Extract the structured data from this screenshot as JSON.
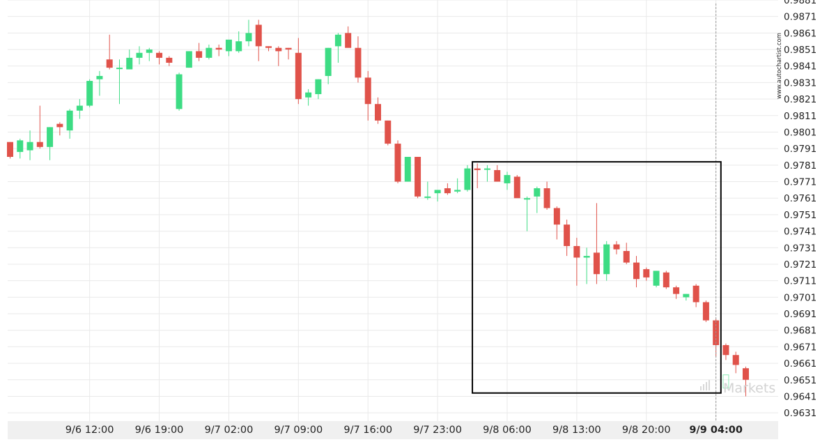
{
  "watermark": {
    "site": "www.autochartist.com",
    "brand": "Markets"
  },
  "colors": {
    "up": "#3ddc84",
    "down": "#e0524a",
    "grid": "#e9e9e9",
    "axis_band": "#f0f0f0",
    "text": "#222222",
    "box": "#000000",
    "cursor": "#999999"
  },
  "chart_data": {
    "type": "candlestick",
    "title": "",
    "xlabel": "",
    "ylabel": "",
    "ylim": [
      0.9626,
      0.9881
    ],
    "y_ticks": [
      "0.9881",
      "0.9871",
      "0.9861",
      "0.9851",
      "0.9841",
      "0.9831",
      "0.9821",
      "0.9811",
      "0.9801",
      "0.9791",
      "0.9781",
      "0.9771",
      "0.9761",
      "0.9751",
      "0.9741",
      "0.9731",
      "0.9721",
      "0.9711",
      "0.9701",
      "0.9691",
      "0.9681",
      "0.9671",
      "0.9661",
      "0.9651",
      "0.9641",
      "0.9631"
    ],
    "x_ticks": [
      {
        "label": "9/6 12:00",
        "bar": 8,
        "bold": false
      },
      {
        "label": "9/6 19:00",
        "bar": 15,
        "bold": false
      },
      {
        "label": "9/7 02:00",
        "bar": 22,
        "bold": false
      },
      {
        "label": "9/7 09:00",
        "bar": 29,
        "bold": false
      },
      {
        "label": "9/7 16:00",
        "bar": 36,
        "bold": false
      },
      {
        "label": "9/7 23:00",
        "bar": 43,
        "bold": false
      },
      {
        "label": "9/8 06:00",
        "bar": 50,
        "bold": false
      },
      {
        "label": "9/8 13:00",
        "bar": 57,
        "bold": false
      },
      {
        "label": "9/8 20:00",
        "bar": 64,
        "bold": false
      },
      {
        "label": "9/9 04:00",
        "bar": 71,
        "bold": true
      }
    ],
    "pattern_box": {
      "start_bar": 46.5,
      "end_bar": 71.5,
      "top": 0.9783,
      "bottom": 0.9643
    },
    "current_bar": 71,
    "candles": [
      {
        "o": 0.9795,
        "h": 0.9795,
        "l": 0.9785,
        "c": 0.9786
      },
      {
        "o": 0.9789,
        "h": 0.9797,
        "l": 0.9785,
        "c": 0.9796
      },
      {
        "o": 0.979,
        "h": 0.9802,
        "l": 0.9784,
        "c": 0.9795
      },
      {
        "o": 0.9795,
        "h": 0.9817,
        "l": 0.9791,
        "c": 0.9792
      },
      {
        "o": 0.9792,
        "h": 0.9804,
        "l": 0.9784,
        "c": 0.9804
      },
      {
        "o": 0.9806,
        "h": 0.9807,
        "l": 0.9799,
        "c": 0.9804
      },
      {
        "o": 0.9802,
        "h": 0.9815,
        "l": 0.9797,
        "c": 0.9814
      },
      {
        "o": 0.9814,
        "h": 0.9821,
        "l": 0.9809,
        "c": 0.9817
      },
      {
        "o": 0.9817,
        "h": 0.9833,
        "l": 0.9816,
        "c": 0.9832
      },
      {
        "o": 0.9833,
        "h": 0.9838,
        "l": 0.9823,
        "c": 0.9835
      },
      {
        "o": 0.9845,
        "h": 0.986,
        "l": 0.9839,
        "c": 0.984
      },
      {
        "o": 0.984,
        "h": 0.9845,
        "l": 0.9818,
        "c": 0.984
      },
      {
        "o": 0.9839,
        "h": 0.9851,
        "l": 0.9839,
        "c": 0.9846
      },
      {
        "o": 0.9846,
        "h": 0.9853,
        "l": 0.9842,
        "c": 0.9849
      },
      {
        "o": 0.9849,
        "h": 0.9852,
        "l": 0.9844,
        "c": 0.9851
      },
      {
        "o": 0.9849,
        "h": 0.985,
        "l": 0.9842,
        "c": 0.9846
      },
      {
        "o": 0.9846,
        "h": 0.9847,
        "l": 0.9841,
        "c": 0.9843
      },
      {
        "o": 0.9815,
        "h": 0.9837,
        "l": 0.9814,
        "c": 0.9836
      },
      {
        "o": 0.984,
        "h": 0.985,
        "l": 0.984,
        "c": 0.985
      },
      {
        "o": 0.985,
        "h": 0.9855,
        "l": 0.9844,
        "c": 0.9846
      },
      {
        "o": 0.9846,
        "h": 0.9854,
        "l": 0.9845,
        "c": 0.9852
      },
      {
        "o": 0.9852,
        "h": 0.9854,
        "l": 0.9847,
        "c": 0.9851
      },
      {
        "o": 0.985,
        "h": 0.9855,
        "l": 0.9847,
        "c": 0.9857
      },
      {
        "o": 0.985,
        "h": 0.9862,
        "l": 0.9849,
        "c": 0.9856
      },
      {
        "o": 0.9856,
        "h": 0.9869,
        "l": 0.9853,
        "c": 0.9861
      },
      {
        "o": 0.9866,
        "h": 0.9869,
        "l": 0.9844,
        "c": 0.9853
      },
      {
        "o": 0.9853,
        "h": 0.9853,
        "l": 0.985,
        "c": 0.9852
      },
      {
        "o": 0.9852,
        "h": 0.9853,
        "l": 0.9841,
        "c": 0.985
      },
      {
        "o": 0.9852,
        "h": 0.9852,
        "l": 0.9845,
        "c": 0.9851
      },
      {
        "o": 0.9849,
        "h": 0.9858,
        "l": 0.9818,
        "c": 0.9821
      },
      {
        "o": 0.9822,
        "h": 0.9827,
        "l": 0.9817,
        "c": 0.9825
      },
      {
        "o": 0.9824,
        "h": 0.9833,
        "l": 0.9821,
        "c": 0.9833
      },
      {
        "o": 0.9835,
        "h": 0.9852,
        "l": 0.983,
        "c": 0.9852
      },
      {
        "o": 0.9853,
        "h": 0.9861,
        "l": 0.9843,
        "c": 0.986
      },
      {
        "o": 0.9861,
        "h": 0.9865,
        "l": 0.9853,
        "c": 0.9852
      },
      {
        "o": 0.9852,
        "h": 0.9859,
        "l": 0.9831,
        "c": 0.9834
      },
      {
        "o": 0.9834,
        "h": 0.9838,
        "l": 0.9808,
        "c": 0.9818
      },
      {
        "o": 0.9818,
        "h": 0.9822,
        "l": 0.9806,
        "c": 0.9808
      },
      {
        "o": 0.9808,
        "h": 0.9808,
        "l": 0.9793,
        "c": 0.9794
      },
      {
        "o": 0.9794,
        "h": 0.9796,
        "l": 0.977,
        "c": 0.9771
      },
      {
        "o": 0.9771,
        "h": 0.9786,
        "l": 0.9771,
        "c": 0.9786
      },
      {
        "o": 0.9786,
        "h": 0.9786,
        "l": 0.9761,
        "c": 0.9762
      },
      {
        "o": 0.9762,
        "h": 0.9771,
        "l": 0.976,
        "c": 0.9762
      },
      {
        "o": 0.9764,
        "h": 0.9766,
        "l": 0.9759,
        "c": 0.9766
      },
      {
        "o": 0.9767,
        "h": 0.977,
        "l": 0.9763,
        "c": 0.9764
      },
      {
        "o": 0.9765,
        "h": 0.9773,
        "l": 0.9764,
        "c": 0.9766
      },
      {
        "o": 0.9766,
        "h": 0.9781,
        "l": 0.9765,
        "c": 0.9779
      },
      {
        "o": 0.9779,
        "h": 0.9782,
        "l": 0.9767,
        "c": 0.9778
      },
      {
        "o": 0.9779,
        "h": 0.9781,
        "l": 0.9771,
        "c": 0.9779
      },
      {
        "o": 0.9778,
        "h": 0.9781,
        "l": 0.9771,
        "c": 0.9771
      },
      {
        "o": 0.977,
        "h": 0.9777,
        "l": 0.9766,
        "c": 0.9775
      },
      {
        "o": 0.9774,
        "h": 0.9775,
        "l": 0.9762,
        "c": 0.9761
      },
      {
        "o": 0.9761,
        "h": 0.9762,
        "l": 0.9741,
        "c": 0.9761
      },
      {
        "o": 0.9762,
        "h": 0.9768,
        "l": 0.9752,
        "c": 0.9767
      },
      {
        "o": 0.9767,
        "h": 0.9771,
        "l": 0.9754,
        "c": 0.9755
      },
      {
        "o": 0.9755,
        "h": 0.9756,
        "l": 0.9736,
        "c": 0.9745
      },
      {
        "o": 0.9745,
        "h": 0.9748,
        "l": 0.9726,
        "c": 0.9732
      },
      {
        "o": 0.9732,
        "h": 0.9737,
        "l": 0.9708,
        "c": 0.9725
      },
      {
        "o": 0.9725,
        "h": 0.9731,
        "l": 0.9709,
        "c": 0.9726
      },
      {
        "o": 0.9728,
        "h": 0.9758,
        "l": 0.9709,
        "c": 0.9715
      },
      {
        "o": 0.9715,
        "h": 0.9735,
        "l": 0.9711,
        "c": 0.9733
      },
      {
        "o": 0.9733,
        "h": 0.9735,
        "l": 0.9727,
        "c": 0.973
      },
      {
        "o": 0.9729,
        "h": 0.9734,
        "l": 0.9721,
        "c": 0.9722
      },
      {
        "o": 0.9722,
        "h": 0.9726,
        "l": 0.9707,
        "c": 0.9712
      },
      {
        "o": 0.9718,
        "h": 0.9719,
        "l": 0.9711,
        "c": 0.9713
      },
      {
        "o": 0.9708,
        "h": 0.9717,
        "l": 0.9707,
        "c": 0.9717
      },
      {
        "o": 0.9716,
        "h": 0.9717,
        "l": 0.9706,
        "c": 0.9707
      },
      {
        "o": 0.9707,
        "h": 0.9708,
        "l": 0.97,
        "c": 0.9703
      },
      {
        "o": 0.9701,
        "h": 0.9703,
        "l": 0.9699,
        "c": 0.9703
      },
      {
        "o": 0.9708,
        "h": 0.9709,
        "l": 0.9695,
        "c": 0.9698
      },
      {
        "o": 0.9698,
        "h": 0.9699,
        "l": 0.9686,
        "c": 0.9687
      },
      {
        "o": 0.9687,
        "h": 0.9688,
        "l": 0.9665,
        "c": 0.9672
      },
      {
        "o": 0.9672,
        "h": 0.9673,
        "l": 0.9663,
        "c": 0.9666
      },
      {
        "o": 0.9666,
        "h": 0.9668,
        "l": 0.9655,
        "c": 0.966
      },
      {
        "o": 0.9658,
        "h": 0.9659,
        "l": 0.9641,
        "c": 0.9651
      }
    ]
  }
}
